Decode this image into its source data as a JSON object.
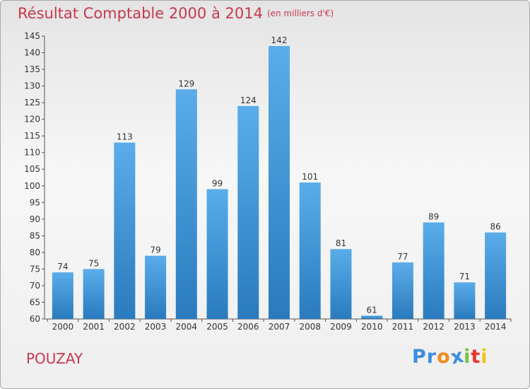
{
  "header": {
    "title": "Résultat Comptable 2000 à 2014",
    "unit": "(en milliers d'€)"
  },
  "footer": {
    "place": "POUZAY",
    "logo_letters": [
      {
        "char": "P",
        "color": "#3a8ee0"
      },
      {
        "char": "r",
        "color": "#3a8ee0"
      },
      {
        "char": "o",
        "color": "#f28c1a"
      },
      {
        "char": "x",
        "color": "#3a8ee0"
      },
      {
        "char": "i",
        "color": "#7ac143"
      },
      {
        "char": "t",
        "color": "#e8342c"
      },
      {
        "char": "i",
        "color": "#f2c21a"
      }
    ]
  },
  "colors": {
    "bar_light": "#5aacea",
    "bar_dark": "#2a7bbd",
    "title": "#c8384c"
  },
  "chart_data": {
    "type": "bar",
    "title": "Résultat Comptable 2000 à 2014",
    "subtitle": "(en milliers d'€)",
    "categories": [
      "2000",
      "2001",
      "2002",
      "2003",
      "2004",
      "2005",
      "2006",
      "2007",
      "2008",
      "2009",
      "2010",
      "2011",
      "2012",
      "2013",
      "2014"
    ],
    "values": [
      74,
      75,
      113,
      79,
      129,
      99,
      124,
      142,
      101,
      81,
      61,
      77,
      89,
      71,
      86
    ],
    "ylim": [
      60,
      145
    ],
    "yticks": [
      60,
      65,
      70,
      75,
      80,
      85,
      90,
      95,
      100,
      105,
      110,
      115,
      120,
      125,
      130,
      135,
      140,
      145
    ],
    "grid": false,
    "data_labels": true
  }
}
